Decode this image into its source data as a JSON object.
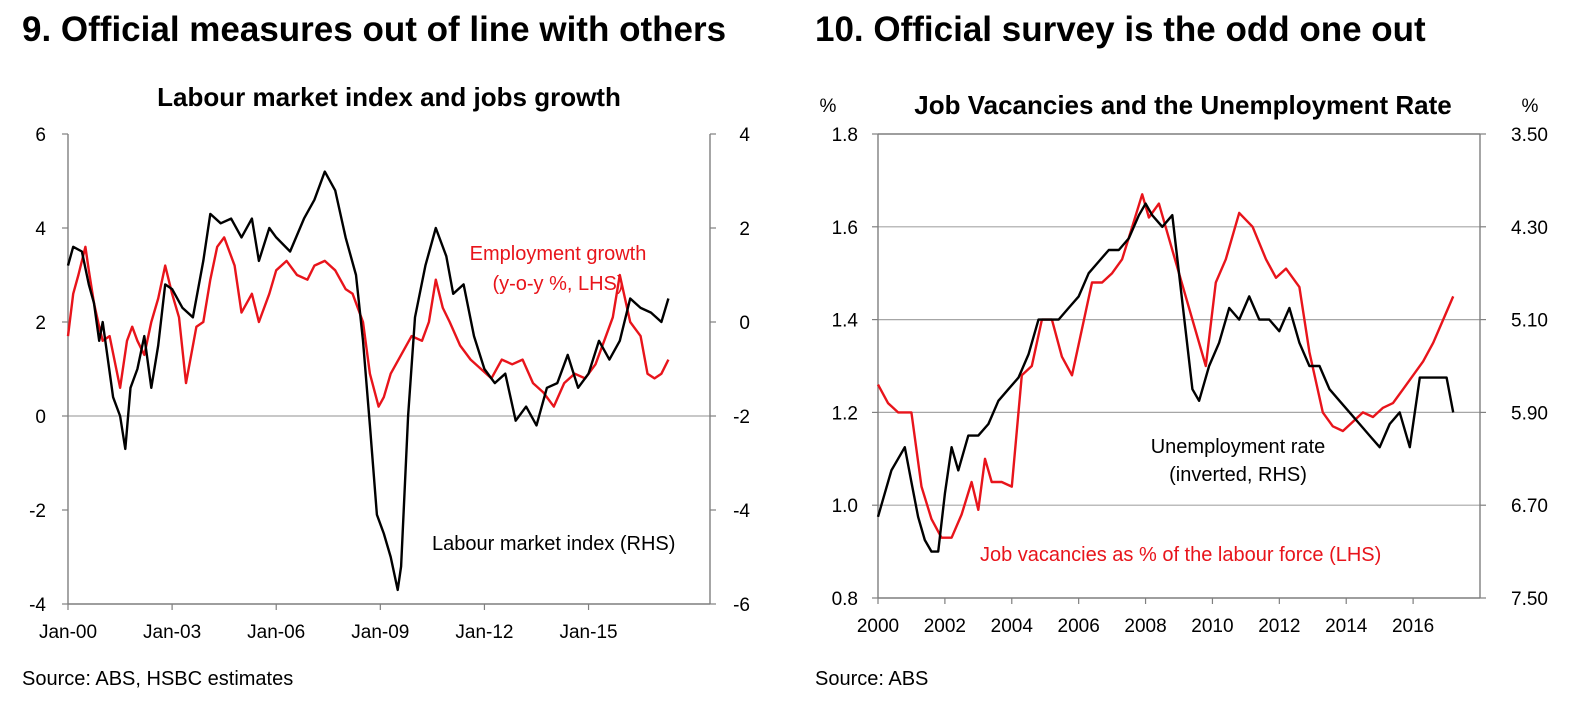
{
  "panels": [
    {
      "title": "9. Official measures out of line with others",
      "source": "Source: ABS, HSBC estimates"
    },
    {
      "title": "10. Official survey is the odd one out",
      "source": "Source: ABS"
    }
  ],
  "colors": {
    "red": "#e8141b",
    "black": "#000000",
    "grid": "#a6a6a6"
  },
  "chart_data": [
    {
      "type": "line",
      "title": "Labour market index and jobs growth",
      "left_axis": {
        "min": -4,
        "max": 6,
        "ticks": [
          6,
          4,
          2,
          0,
          -2,
          -4
        ]
      },
      "right_axis": {
        "min": -6,
        "max": 4,
        "ticks": [
          4,
          2,
          0,
          -2,
          -4,
          -6
        ]
      },
      "x_range": [
        2000,
        2018.5
      ],
      "x_ticks": [
        {
          "x": 2000,
          "label": "Jan-00"
        },
        {
          "x": 2003,
          "label": "Jan-03"
        },
        {
          "x": 2006,
          "label": "Jan-06"
        },
        {
          "x": 2009,
          "label": "Jan-09"
        },
        {
          "x": 2012,
          "label": "Jan-12"
        },
        {
          "x": 2015,
          "label": "Jan-15"
        }
      ],
      "zero_line": 0,
      "series": [
        {
          "name": "Employment growth",
          "axis": "left",
          "color": "#e8141b",
          "x": [
            2000.0,
            2000.15,
            2000.3,
            2000.5,
            2000.6,
            2000.75,
            2000.9,
            2001.0,
            2001.2,
            2001.5,
            2001.7,
            2001.85,
            2002.0,
            2002.2,
            2002.4,
            2002.6,
            2002.8,
            2003.0,
            2003.2,
            2003.4,
            2003.7,
            2003.9,
            2004.1,
            2004.3,
            2004.5,
            2004.8,
            2005.0,
            2005.3,
            2005.5,
            2005.8,
            2006.0,
            2006.3,
            2006.6,
            2006.9,
            2007.1,
            2007.4,
            2007.7,
            2008.0,
            2008.2,
            2008.5,
            2008.7,
            2008.95,
            2009.1,
            2009.3,
            2009.6,
            2009.9,
            2010.2,
            2010.4,
            2010.6,
            2010.8,
            2011.0,
            2011.3,
            2011.6,
            2011.9,
            2012.2,
            2012.5,
            2012.8,
            2013.1,
            2013.4,
            2013.7,
            2014.0,
            2014.3,
            2014.6,
            2014.9,
            2015.2,
            2015.45,
            2015.7,
            2015.9,
            2016.2,
            2016.5,
            2016.7,
            2016.9,
            2017.1,
            2017.3
          ],
          "values": [
            1.7,
            2.6,
            3.0,
            3.6,
            3.1,
            2.4,
            1.9,
            1.6,
            1.7,
            0.6,
            1.6,
            1.9,
            1.6,
            1.3,
            2.0,
            2.5,
            3.2,
            2.6,
            2.1,
            0.7,
            1.9,
            2.0,
            2.9,
            3.6,
            3.8,
            3.2,
            2.2,
            2.6,
            2.0,
            2.6,
            3.1,
            3.3,
            3.0,
            2.9,
            3.2,
            3.3,
            3.1,
            2.7,
            2.6,
            2.0,
            0.9,
            0.2,
            0.4,
            0.9,
            1.3,
            1.7,
            1.6,
            2.0,
            2.9,
            2.3,
            2.0,
            1.5,
            1.2,
            1.0,
            0.8,
            1.2,
            1.1,
            1.2,
            0.7,
            0.5,
            0.2,
            0.7,
            0.9,
            0.8,
            1.1,
            1.6,
            2.1,
            3.0,
            2.0,
            1.7,
            0.9,
            0.8,
            0.9,
            1.2
          ]
        },
        {
          "name": "Labour market index",
          "axis": "right",
          "color": "#000000",
          "x": [
            2000.0,
            2000.15,
            2000.4,
            2000.6,
            2000.75,
            2000.9,
            2001.0,
            2001.3,
            2001.5,
            2001.65,
            2001.8,
            2002.0,
            2002.2,
            2002.4,
            2002.6,
            2002.8,
            2003.0,
            2003.3,
            2003.6,
            2003.9,
            2004.1,
            2004.4,
            2004.7,
            2005.0,
            2005.3,
            2005.5,
            2005.8,
            2006.0,
            2006.4,
            2006.8,
            2007.1,
            2007.4,
            2007.7,
            2008.0,
            2008.3,
            2008.5,
            2008.7,
            2008.9,
            2009.1,
            2009.3,
            2009.5,
            2009.6,
            2009.8,
            2010.0,
            2010.3,
            2010.6,
            2010.9,
            2011.1,
            2011.4,
            2011.7,
            2012.0,
            2012.3,
            2012.6,
            2012.9,
            2013.2,
            2013.5,
            2013.8,
            2014.1,
            2014.4,
            2014.7,
            2015.0,
            2015.3,
            2015.6,
            2015.9,
            2016.2,
            2016.5,
            2016.8,
            2017.1,
            2017.3
          ],
          "values": [
            1.2,
            1.6,
            1.5,
            0.8,
            0.4,
            -0.4,
            0.0,
            -1.6,
            -2.0,
            -2.7,
            -1.4,
            -1.0,
            -0.3,
            -1.4,
            -0.5,
            0.8,
            0.7,
            0.3,
            0.1,
            1.3,
            2.3,
            2.1,
            2.2,
            1.8,
            2.2,
            1.3,
            2.0,
            1.8,
            1.5,
            2.2,
            2.6,
            3.2,
            2.8,
            1.8,
            1.0,
            -0.4,
            -2.2,
            -4.1,
            -4.5,
            -5.0,
            -5.7,
            -5.2,
            -2.0,
            0.1,
            1.2,
            2.0,
            1.4,
            0.6,
            0.8,
            -0.3,
            -1.0,
            -1.3,
            -1.1,
            -2.1,
            -1.8,
            -2.2,
            -1.4,
            -1.3,
            -0.7,
            -1.4,
            -1.1,
            -0.4,
            -0.8,
            -0.4,
            0.5,
            0.3,
            0.2,
            0.0,
            0.5
          ]
        }
      ],
      "annotations": [
        {
          "line1": "Employment growth",
          "line2": "(y-o-y %, LHS)",
          "color": "#e8141b"
        },
        {
          "line1": "Labour market index (RHS)",
          "line2": "",
          "color": "#000000"
        }
      ]
    },
    {
      "type": "line",
      "title": "Job Vacancies and the Unemployment Rate",
      "left_unit": "%",
      "right_unit": "%",
      "left_axis": {
        "min": 0.8,
        "max": 1.8,
        "ticks": [
          "1.8",
          "1.6",
          "1.4",
          "1.2",
          "1.0",
          "0.8"
        ]
      },
      "right_axis": {
        "min": 3.5,
        "max": 7.5,
        "inverted": true,
        "ticks": [
          "3.50",
          "4.30",
          "5.10",
          "5.90",
          "6.70",
          "7.50"
        ]
      },
      "x_range": [
        2000,
        2018
      ],
      "x_ticks": [
        {
          "x": 2000,
          "label": "2000"
        },
        {
          "x": 2002,
          "label": "2002"
        },
        {
          "x": 2004,
          "label": "2004"
        },
        {
          "x": 2006,
          "label": "2006"
        },
        {
          "x": 2008,
          "label": "2008"
        },
        {
          "x": 2010,
          "label": "2010"
        },
        {
          "x": 2012,
          "label": "2012"
        },
        {
          "x": 2014,
          "label": "2014"
        },
        {
          "x": 2016,
          "label": "2016"
        }
      ],
      "gridlines": true,
      "series": [
        {
          "name": "Job vacancies as % of the labour force",
          "axis": "left",
          "color": "#e8141b",
          "x": [
            2000.0,
            2000.3,
            2000.6,
            2001.0,
            2001.3,
            2001.6,
            2001.9,
            2002.2,
            2002.5,
            2002.8,
            2003.0,
            2003.2,
            2003.4,
            2003.7,
            2004.0,
            2004.3,
            2004.6,
            2004.9,
            2005.2,
            2005.5,
            2005.8,
            2006.1,
            2006.4,
            2006.7,
            2007.0,
            2007.3,
            2007.6,
            2007.9,
            2008.1,
            2008.4,
            2009.8,
            2010.1,
            2010.4,
            2010.8,
            2011.2,
            2011.6,
            2011.9,
            2012.2,
            2012.6,
            2012.9,
            2013.3,
            2013.6,
            2013.9,
            2014.2,
            2014.5,
            2014.8,
            2015.1,
            2015.4,
            2015.7,
            2016.0,
            2016.3,
            2016.6,
            2016.9,
            2017.2
          ],
          "values": [
            1.26,
            1.22,
            1.2,
            1.2,
            1.04,
            0.97,
            0.93,
            0.93,
            0.98,
            1.05,
            0.99,
            1.1,
            1.05,
            1.05,
            1.04,
            1.28,
            1.3,
            1.4,
            1.4,
            1.32,
            1.28,
            1.38,
            1.48,
            1.48,
            1.5,
            1.53,
            1.6,
            1.67,
            1.62,
            1.65,
            1.3,
            1.48,
            1.53,
            1.63,
            1.6,
            1.53,
            1.49,
            1.51,
            1.47,
            1.33,
            1.2,
            1.17,
            1.16,
            1.18,
            1.2,
            1.19,
            1.21,
            1.22,
            1.25,
            1.28,
            1.31,
            1.35,
            1.4,
            1.45
          ]
        },
        {
          "name": "Unemployment rate",
          "axis": "right",
          "color": "#000000",
          "x": [
            2000.0,
            2000.2,
            2000.4,
            2000.6,
            2000.8,
            2001.0,
            2001.2,
            2001.4,
            2001.6,
            2001.8,
            2002.0,
            2002.2,
            2002.4,
            2002.7,
            2003.0,
            2003.3,
            2003.6,
            2003.9,
            2004.2,
            2004.5,
            2004.8,
            2005.1,
            2005.4,
            2005.7,
            2006.0,
            2006.3,
            2006.6,
            2006.9,
            2007.2,
            2007.5,
            2007.8,
            2008.0,
            2008.2,
            2008.5,
            2008.8,
            2009.0,
            2009.2,
            2009.4,
            2009.6,
            2009.9,
            2010.2,
            2010.5,
            2010.8,
            2011.1,
            2011.4,
            2011.7,
            2012.0,
            2012.3,
            2012.6,
            2012.9,
            2013.2,
            2013.5,
            2013.8,
            2014.1,
            2014.4,
            2014.7,
            2015.0,
            2015.3,
            2015.6,
            2015.9,
            2016.2,
            2016.5,
            2016.8,
            2017.0,
            2017.2
          ],
          "values": [
            6.8,
            6.6,
            6.4,
            6.3,
            6.2,
            6.5,
            6.8,
            7.0,
            7.1,
            7.1,
            6.6,
            6.2,
            6.4,
            6.1,
            6.1,
            6.0,
            5.8,
            5.7,
            5.6,
            5.4,
            5.1,
            5.1,
            5.1,
            5.0,
            4.9,
            4.7,
            4.6,
            4.5,
            4.5,
            4.4,
            4.2,
            4.1,
            4.2,
            4.3,
            4.2,
            4.7,
            5.2,
            5.7,
            5.8,
            5.5,
            5.3,
            5.0,
            5.1,
            4.9,
            5.1,
            5.1,
            5.2,
            5.0,
            5.3,
            5.5,
            5.5,
            5.7,
            5.8,
            5.9,
            6.0,
            6.1,
            6.2,
            6.0,
            5.9,
            6.2,
            5.6,
            5.6,
            5.6,
            5.6,
            5.9
          ]
        }
      ],
      "annotations": [
        {
          "line1": "Unemployment rate",
          "line2": "(inverted, RHS)",
          "color": "#000000"
        },
        {
          "line1": "Job vacancies as % of the labour force (LHS)",
          "line2": "",
          "color": "#e8141b"
        }
      ]
    }
  ]
}
